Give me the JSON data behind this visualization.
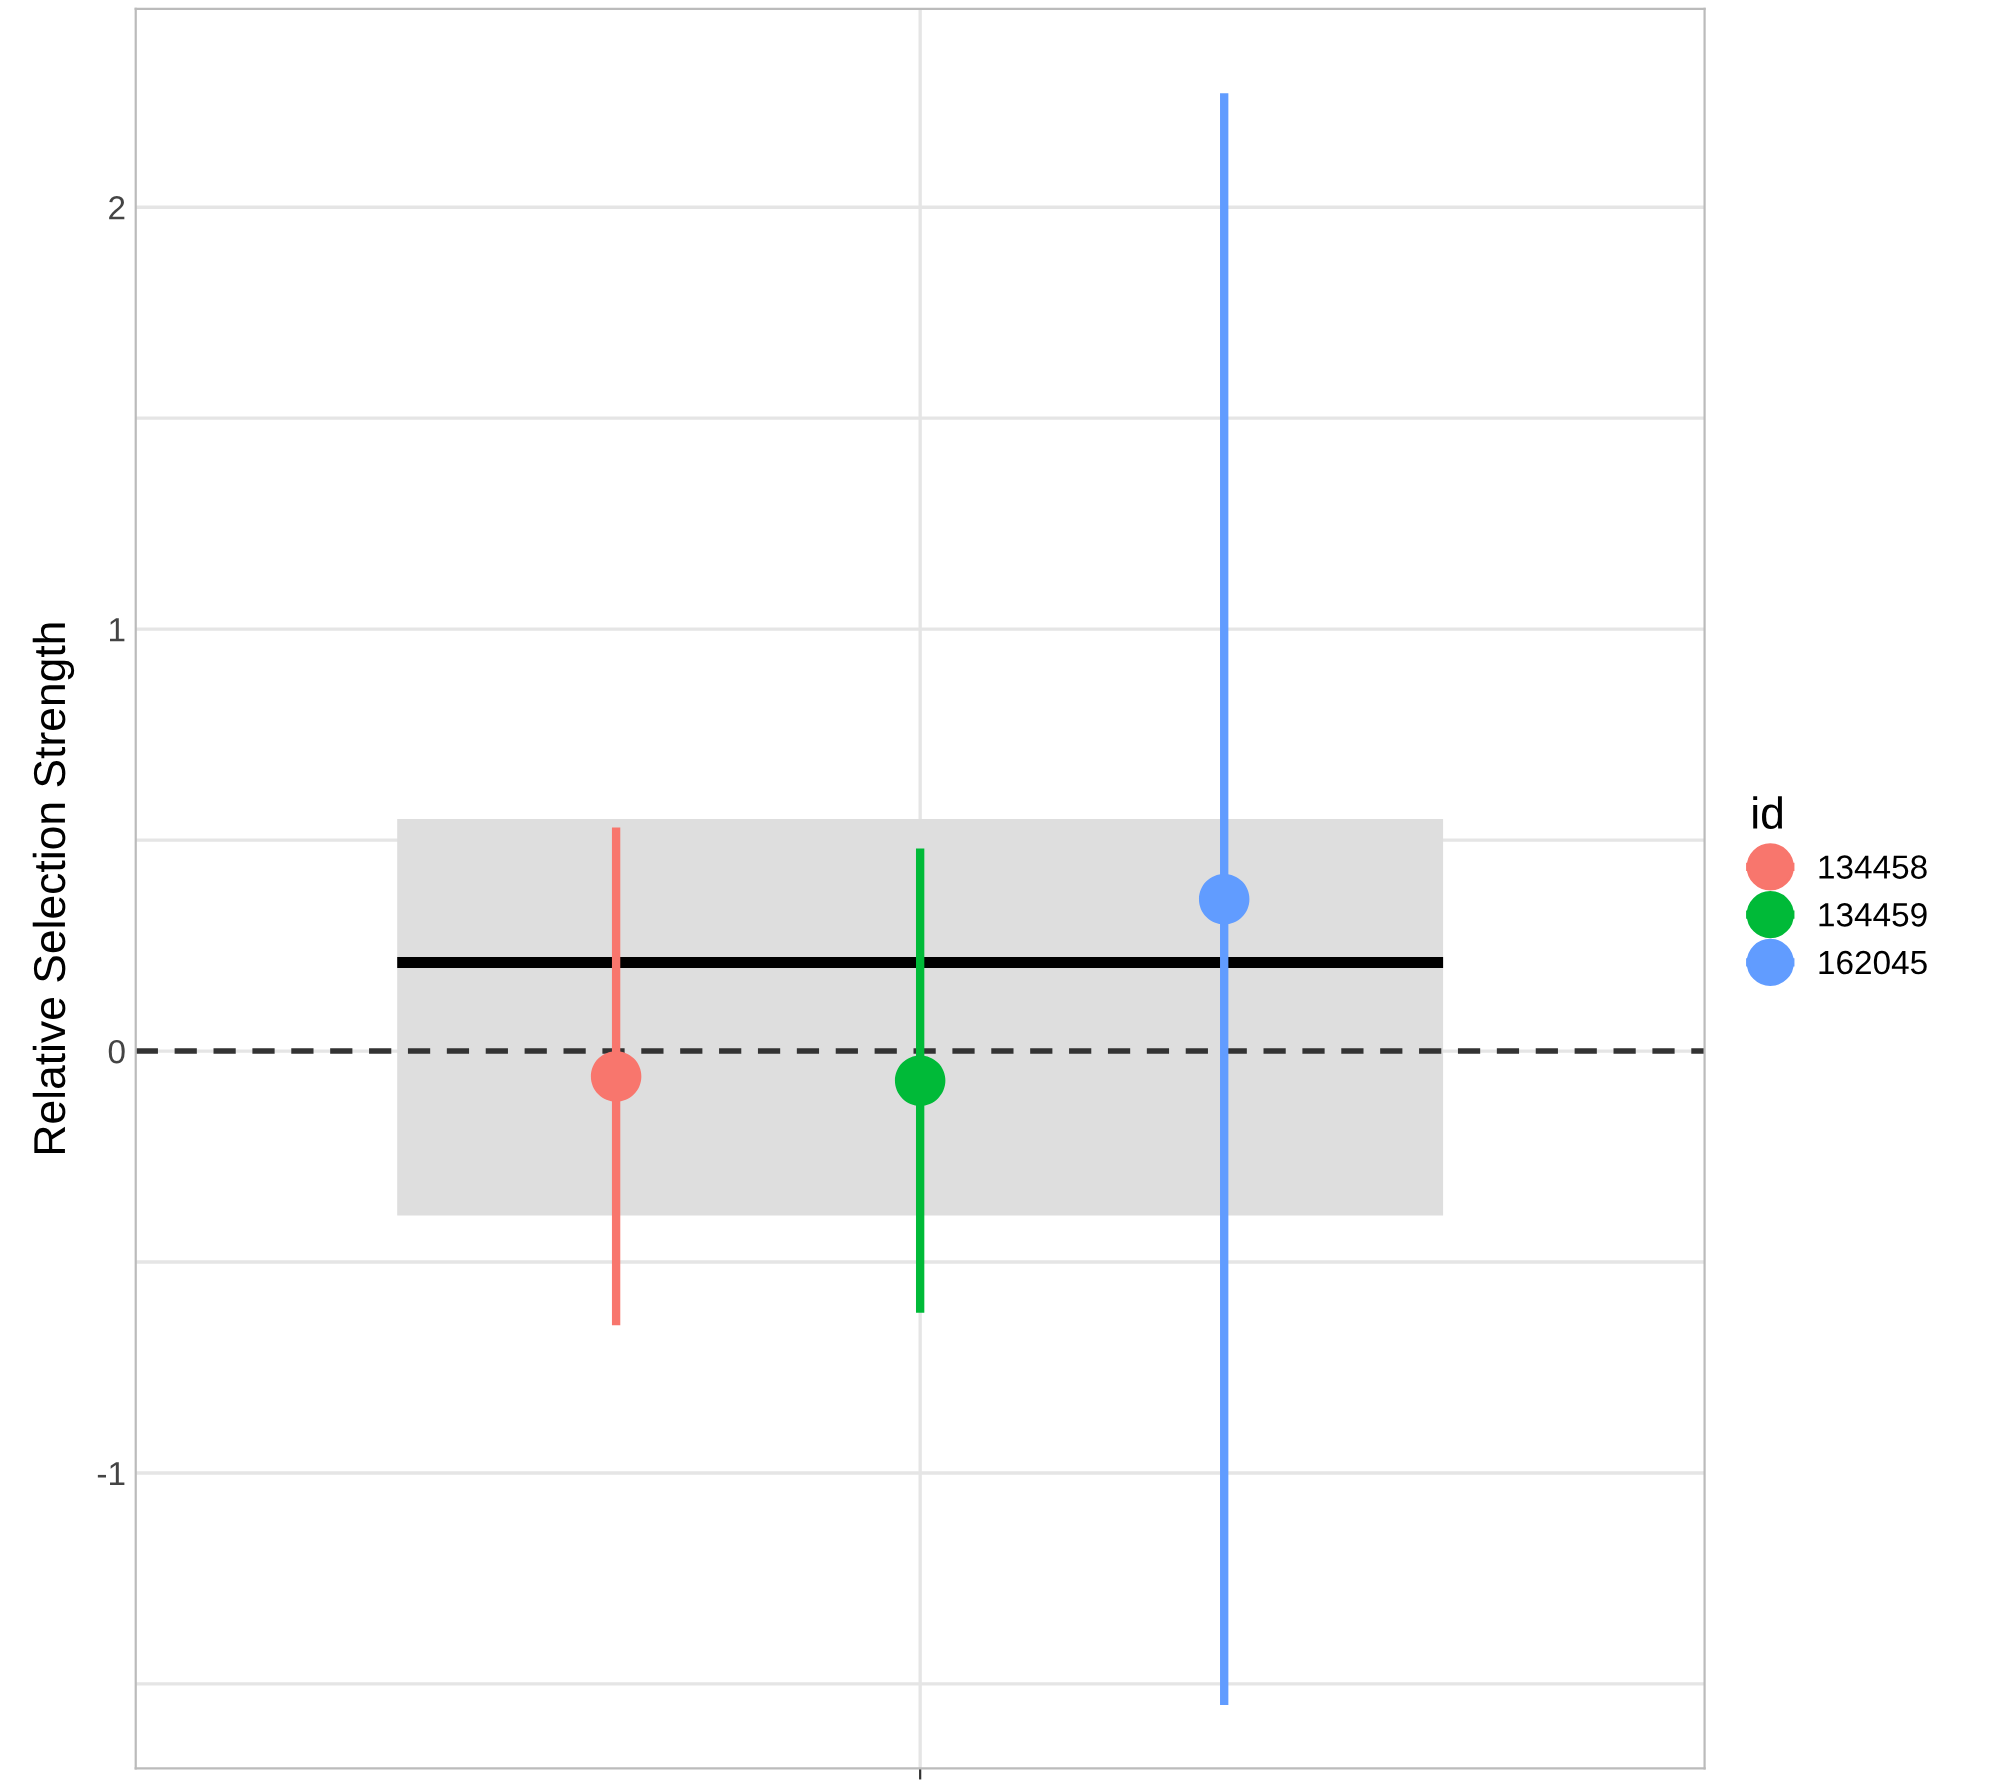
{
  "chart_data": {
    "type": "scatter",
    "ylabel": "Relative Selection Strength",
    "legend_title": "id",
    "categories": [
      null,
      null,
      null
    ],
    "series": [
      {
        "name": "134458",
        "color": "#f8766d",
        "values": [
          -0.06,
          null,
          null
        ],
        "errors": [
          [
            -0.65,
            0.53
          ],
          null,
          null
        ]
      },
      {
        "name": "134459",
        "color": "#00ba38",
        "values": [
          null,
          -0.07,
          null
        ],
        "errors": [
          null,
          [
            -0.62,
            0.48
          ],
          null
        ]
      },
      {
        "name": "162045",
        "color": "#619cff",
        "values": [
          null,
          null,
          0.36
        ],
        "errors": [
          null,
          null,
          [
            -1.55,
            2.27
          ]
        ]
      }
    ],
    "ylim": [
      -1.7,
      2.47
    ],
    "yticks": [
      {
        "value": -1.5,
        "label": null
      },
      -1,
      {
        "value": -0.5,
        "label": null
      },
      0,
      {
        "value": 0.5,
        "label": null
      },
      1,
      {
        "value": 1.5,
        "label": null
      },
      2
    ],
    "bands": [
      {
        "axis": "y",
        "from": -0.39,
        "to": 0.55,
        "color": "#dedede"
      }
    ],
    "ref_lines": [
      {
        "axis": "y",
        "value": 0.21,
        "color": "#000000",
        "line_style": "solid"
      },
      {
        "axis": "y",
        "value": 0,
        "color": "#333333",
        "line_style": "dashed"
      }
    ],
    "grid": true,
    "legend": "right",
    "marker": "circle"
  }
}
